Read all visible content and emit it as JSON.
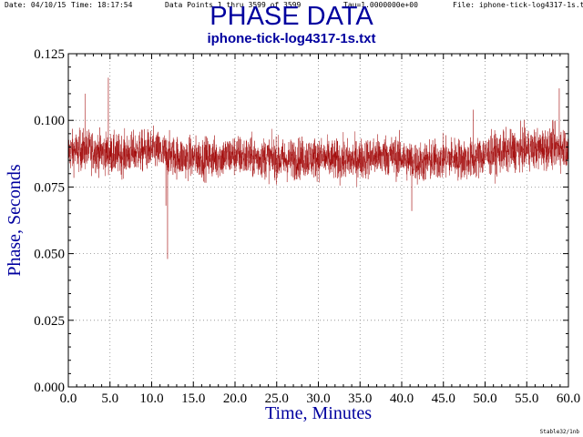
{
  "header": {
    "date": "Date: 04/10/15",
    "time": "Time: 18:17:54",
    "points": "Data Points 1 thru 3599 of 3599",
    "tau": "Tau=1.0000000e+00",
    "file": "File: iphone-tick-log4317-1s.txt"
  },
  "footer": "Stable32/1nb",
  "chart_data": {
    "type": "line",
    "title": "PHASE DATA",
    "subtitle": "iphone-tick-log4317-1s.txt",
    "xlabel": "Time, Minutes",
    "ylabel": "Phase, Seconds",
    "xlim": [
      0,
      60
    ],
    "ylim": [
      0,
      0.125
    ],
    "x_ticks": [
      "0.0",
      "5.0",
      "10.0",
      "15.0",
      "20.0",
      "25.0",
      "30.0",
      "35.0",
      "40.0",
      "45.0",
      "50.0",
      "55.0",
      "60.0"
    ],
    "y_ticks": [
      "0.000",
      "0.025",
      "0.050",
      "0.075",
      "0.100",
      "0.125"
    ],
    "grid": true,
    "n_points": 3599,
    "line_color": "#9f0000",
    "text_color": "#00009f",
    "series": [
      {
        "x": [
          0,
          2,
          4,
          6,
          8,
          10,
          12,
          14,
          16,
          18,
          20,
          22,
          24,
          26,
          28,
          30,
          32,
          34,
          36,
          38,
          40,
          42,
          44,
          46,
          48,
          50,
          52,
          54,
          56,
          58,
          60
        ],
        "y": [
          0.088,
          0.089,
          0.088,
          0.087,
          0.088,
          0.089,
          0.087,
          0.086,
          0.086,
          0.086,
          0.087,
          0.086,
          0.086,
          0.085,
          0.086,
          0.086,
          0.085,
          0.085,
          0.086,
          0.087,
          0.086,
          0.084,
          0.085,
          0.086,
          0.085,
          0.087,
          0.088,
          0.089,
          0.089,
          0.09,
          0.09
        ],
        "spread": 0.009,
        "spikes": [
          {
            "x": 2.0,
            "y": 0.11
          },
          {
            "x": 4.8,
            "y": 0.116
          },
          {
            "x": 11.9,
            "y": 0.048
          },
          {
            "x": 11.7,
            "y": 0.068
          },
          {
            "x": 41.2,
            "y": 0.066
          },
          {
            "x": 48.6,
            "y": 0.104
          },
          {
            "x": 58.9,
            "y": 0.112
          }
        ]
      }
    ]
  }
}
